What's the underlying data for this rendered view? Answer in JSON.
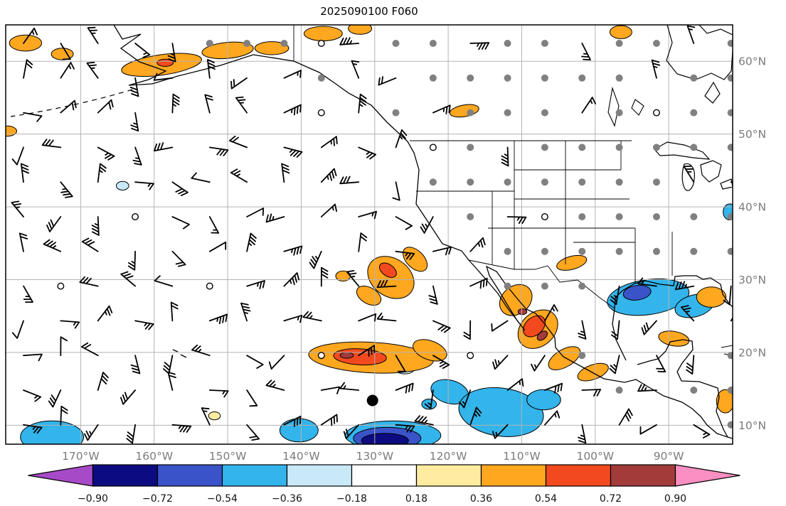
{
  "title": "2025090100 F060",
  "chart_data": {
    "type": "heatmap",
    "subtype": "filled-contour anomaly map with wind barbs and station dots",
    "title": "2025090100 F060",
    "lon_range": [
      -180.2,
      -81.3
    ],
    "lat_range": [
      7.4,
      65.0
    ],
    "grid": true,
    "grid_color": "#b3b3b3",
    "x_ticks": {
      "lons": [
        -170,
        -160,
        -150,
        -140,
        -130,
        -120,
        -110,
        -100,
        -90
      ],
      "labels": [
        "170°W",
        "160°W",
        "150°W",
        "140°W",
        "130°W",
        "120°W",
        "110°W",
        "100°W",
        "90°W"
      ]
    },
    "y_ticks": {
      "lats": [
        60,
        50,
        40,
        30,
        20,
        10
      ],
      "labels": [
        "60°N",
        "50°N",
        "40°N",
        "30°N",
        "20°N",
        "10°N"
      ]
    },
    "palette": {
      "p": "#c9e9f8",
      "s": "#33b4ea",
      "b": "#3a53c8",
      "n": "#0c0c80",
      "y": "#ffeca0",
      "o": "#ffa71f",
      "r": "#f24a1e",
      "d": "#a33b3b"
    },
    "regions": [
      [
        -164.3,
        42.9,
        0.85,
        0.6,
        0,
        "p"
      ],
      [
        -125.9,
        17.6,
        1.2,
        0.55,
        0,
        "p"
      ],
      [
        -173.9,
        8.4,
        4.3,
        2.2,
        0,
        "s"
      ],
      [
        -140.3,
        9.3,
        2.6,
        1.6,
        0,
        "s"
      ],
      [
        -127.5,
        8.6,
        6.5,
        2.0,
        0,
        "s"
      ],
      [
        -119.8,
        14.6,
        2.6,
        1.6,
        15,
        "s"
      ],
      [
        -112.8,
        11.8,
        5.8,
        3.3,
        8,
        "s"
      ],
      [
        -107.0,
        13.5,
        2.3,
        1.4,
        0,
        "s"
      ],
      [
        -122.6,
        12.9,
        1.0,
        0.7,
        0,
        "s"
      ],
      [
        -92.8,
        27.6,
        5.6,
        2.4,
        -8,
        "s"
      ],
      [
        -86.5,
        26.4,
        2.7,
        1.5,
        -15,
        "s"
      ],
      [
        -81.7,
        39.3,
        0.9,
        1.1,
        0,
        "s"
      ],
      [
        -128.3,
        8.2,
        4.6,
        1.5,
        0,
        "b"
      ],
      [
        -94.3,
        28.2,
        1.9,
        1.0,
        -8,
        "b"
      ],
      [
        -128.6,
        7.9,
        3.2,
        1.0,
        0,
        "n"
      ],
      [
        -151.8,
        11.3,
        0.8,
        0.55,
        0,
        "y"
      ],
      [
        -177.5,
        62.5,
        2.2,
        1.1,
        0,
        "o"
      ],
      [
        -172.5,
        61.0,
        1.5,
        0.8,
        0,
        "o"
      ],
      [
        -159.0,
        59.5,
        5.5,
        1.4,
        -8,
        "o"
      ],
      [
        -150.0,
        61.5,
        3.5,
        1.1,
        -5,
        "o"
      ],
      [
        -144.0,
        61.8,
        2.3,
        0.9,
        0,
        "o"
      ],
      [
        -137.0,
        63.8,
        2.6,
        1.0,
        0,
        "o"
      ],
      [
        -132.0,
        64.5,
        1.6,
        0.8,
        0,
        "o"
      ],
      [
        -96.5,
        64.0,
        1.5,
        0.9,
        0,
        "o"
      ],
      [
        -117.8,
        53.2,
        2.0,
        0.8,
        -10,
        "o"
      ],
      [
        -180.0,
        50.4,
        1.3,
        0.7,
        0,
        "o"
      ],
      [
        -127.8,
        30.3,
        3.4,
        2.6,
        35,
        "o"
      ],
      [
        -124.5,
        32.8,
        2.0,
        1.2,
        45,
        "o"
      ],
      [
        -130.8,
        27.8,
        1.8,
        1.1,
        30,
        "o"
      ],
      [
        -134.3,
        30.5,
        1.0,
        0.7,
        0,
        "o"
      ],
      [
        -130.5,
        19.3,
        8.5,
        2.1,
        3,
        "o"
      ],
      [
        -122.5,
        20.3,
        2.4,
        1.3,
        20,
        "o"
      ],
      [
        -110.8,
        27.2,
        2.4,
        1.9,
        -40,
        "o"
      ],
      [
        -107.8,
        23.2,
        3.0,
        2.3,
        -42,
        "o"
      ],
      [
        -104.2,
        19.2,
        2.4,
        1.2,
        -30,
        "o"
      ],
      [
        -100.3,
        17.3,
        2.2,
        1.0,
        -20,
        "o"
      ],
      [
        -103.2,
        32.3,
        2.1,
        0.9,
        -15,
        "o"
      ],
      [
        -84.2,
        27.6,
        2.0,
        1.4,
        0,
        "o"
      ],
      [
        -89.3,
        21.9,
        2.1,
        1.0,
        10,
        "o"
      ],
      [
        -82.3,
        13.3,
        1.2,
        1.6,
        0,
        "o"
      ],
      [
        -158.5,
        59.8,
        1.1,
        0.5,
        0,
        "r"
      ],
      [
        -128.2,
        31.3,
        1.3,
        0.8,
        35,
        "r"
      ],
      [
        -132.0,
        19.4,
        3.6,
        1.1,
        3,
        "r"
      ],
      [
        -108.3,
        23.6,
        1.7,
        1.2,
        -42,
        "r"
      ],
      [
        -133.8,
        19.6,
        0.9,
        0.4,
        0,
        "d"
      ],
      [
        -107.2,
        22.3,
        0.8,
        0.5,
        -40,
        "d"
      ],
      [
        -109.9,
        25.6,
        0.6,
        0.4,
        0,
        "d"
      ]
    ],
    "special_marker": {
      "lon": -130.3,
      "lat": 13.4,
      "style": "filled-black-circle"
    },
    "colorbar": {
      "orientation": "horizontal",
      "boundaries": [
        -0.9,
        -0.72,
        -0.54,
        -0.36,
        -0.18,
        0.18,
        0.36,
        0.54,
        0.72,
        0.9
      ],
      "tick_labels": [
        "−0.90",
        "−0.72",
        "−0.54",
        "−0.36",
        "−0.18",
        "0.18",
        "0.36",
        "0.54",
        "0.72",
        "0.90"
      ],
      "segment_colors": [
        "#0c0c80",
        "#3a53c8",
        "#33b4ea",
        "#c9e9f8",
        "#ffffff",
        "#ffeca0",
        "#ffa71f",
        "#f24a1e",
        "#a33b3b"
      ],
      "under_color": "#a64ac8",
      "over_color": "#f98fc2"
    }
  }
}
